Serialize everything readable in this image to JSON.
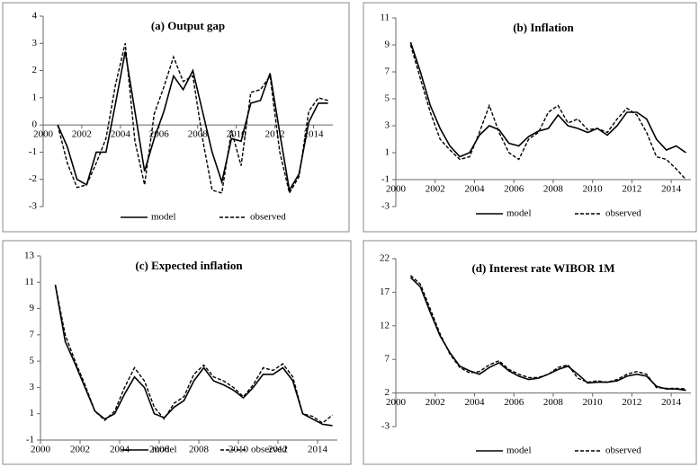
{
  "chart_data": [
    {
      "type": "line",
      "title": "(a) Output gap",
      "xlim": [
        2000,
        2015
      ],
      "xticks": [
        2000,
        2002,
        2004,
        2006,
        2008,
        2010,
        2012,
        2014
      ],
      "ylim": [
        -3,
        4
      ],
      "yticks": [
        -3,
        -2,
        -1,
        0,
        1,
        2,
        3,
        4
      ],
      "xaxis_at": 0,
      "x": [
        2000.75,
        2001.25,
        2001.75,
        2002.25,
        2002.75,
        2003.25,
        2003.75,
        2004.25,
        2004.75,
        2005.25,
        2005.75,
        2006.25,
        2006.75,
        2007.25,
        2007.75,
        2008.25,
        2008.75,
        2009.25,
        2009.75,
        2010.25,
        2010.75,
        2011.25,
        2011.75,
        2012.25,
        2012.75,
        2013.25,
        2013.75,
        2014.25,
        2014.75
      ],
      "series": [
        {
          "name": "model",
          "color": "#000000",
          "dashed": false,
          "values": [
            0,
            -0.8,
            -2.0,
            -2.2,
            -1.0,
            -1.0,
            0.8,
            2.7,
            0.5,
            -1.7,
            -0.5,
            0.5,
            1.8,
            1.3,
            2.0,
            0.5,
            -1.0,
            -2.1,
            -0.5,
            -0.6,
            0.8,
            0.9,
            1.9,
            -0.3,
            -2.4,
            -1.8,
            0.1,
            0.8,
            0.8
          ]
        },
        {
          "name": "observed",
          "color": "#000000",
          "dashed": true,
          "values": [
            0,
            -1.4,
            -2.3,
            -2.2,
            -1.4,
            -0.5,
            1.5,
            3.0,
            -0.6,
            -2.2,
            0.4,
            1.4,
            2.5,
            1.6,
            1.8,
            -0.5,
            -2.4,
            -2.5,
            -0.2,
            -1.5,
            1.2,
            1.3,
            1.8,
            -1.0,
            -2.5,
            -1.9,
            0.5,
            1.0,
            0.9
          ]
        }
      ]
    },
    {
      "type": "line",
      "title": "(b) Inflation",
      "xlim": [
        2000,
        2015
      ],
      "xticks": [
        2000,
        2002,
        2004,
        2006,
        2008,
        2010,
        2012,
        2014
      ],
      "ylim": [
        -3,
        11
      ],
      "yticks": [
        -3,
        -1,
        1,
        3,
        5,
        7,
        9,
        11
      ],
      "xaxis_at": -1,
      "x": [
        2000.75,
        2001.25,
        2001.75,
        2002.25,
        2002.75,
        2003.25,
        2003.75,
        2004.25,
        2004.75,
        2005.25,
        2005.75,
        2006.25,
        2006.75,
        2007.25,
        2007.75,
        2008.25,
        2008.75,
        2009.25,
        2009.75,
        2010.25,
        2010.75,
        2011.25,
        2011.75,
        2012.25,
        2012.75,
        2013.25,
        2013.75,
        2014.25,
        2014.75
      ],
      "series": [
        {
          "name": "model",
          "color": "#000000",
          "dashed": false,
          "values": [
            9.2,
            7.0,
            4.5,
            2.8,
            1.5,
            0.7,
            1.0,
            2.3,
            3.0,
            2.7,
            1.7,
            1.5,
            2.2,
            2.6,
            2.8,
            3.8,
            3.0,
            2.8,
            2.5,
            2.8,
            2.3,
            3.0,
            4.0,
            4.0,
            3.5,
            2.0,
            1.2,
            1.5,
            1.0
          ]
        },
        {
          "name": "observed",
          "color": "#000000",
          "dashed": true,
          "values": [
            9.0,
            6.5,
            4.0,
            2.0,
            1.2,
            0.5,
            0.7,
            2.5,
            4.5,
            2.5,
            1.0,
            0.5,
            2.0,
            2.5,
            4.0,
            4.5,
            3.2,
            3.5,
            2.7,
            2.8,
            2.5,
            3.5,
            4.3,
            3.8,
            2.5,
            0.7,
            0.5,
            -0.2,
            -1.0
          ]
        }
      ]
    },
    {
      "type": "line",
      "title": "(c) Expected inflation",
      "xlim": [
        2000,
        2015
      ],
      "xticks": [
        2000,
        2002,
        2004,
        2006,
        2008,
        2010,
        2012,
        2014
      ],
      "ylim": [
        -1,
        13
      ],
      "yticks": [
        -1,
        1,
        3,
        5,
        7,
        9,
        11,
        13
      ],
      "xaxis_at": -1,
      "x": [
        2000.75,
        2001.25,
        2001.75,
        2002.25,
        2002.75,
        2003.25,
        2003.75,
        2004.25,
        2004.75,
        2005.25,
        2005.75,
        2006.25,
        2006.75,
        2007.25,
        2007.75,
        2008.25,
        2008.75,
        2009.25,
        2009.75,
        2010.25,
        2010.75,
        2011.25,
        2011.75,
        2012.25,
        2012.75,
        2013.25,
        2013.75,
        2014.25,
        2014.75
      ],
      "series": [
        {
          "name": "model",
          "color": "#000000",
          "dashed": false,
          "values": [
            10.8,
            6.5,
            4.8,
            3.0,
            1.2,
            0.6,
            1.0,
            2.5,
            3.8,
            3.0,
            1.0,
            0.7,
            1.5,
            2.0,
            3.5,
            4.5,
            3.5,
            3.2,
            2.8,
            2.2,
            3.0,
            4.0,
            4.0,
            4.5,
            3.5,
            1.0,
            0.6,
            0.2,
            0.1
          ]
        },
        {
          "name": "observed",
          "color": "#000000",
          "dashed": true,
          "values": [
            10.8,
            7.0,
            5.0,
            3.2,
            1.2,
            0.5,
            1.2,
            3.0,
            4.5,
            3.5,
            1.5,
            0.6,
            1.8,
            2.3,
            4.0,
            4.7,
            3.8,
            3.5,
            3.0,
            2.3,
            3.2,
            4.5,
            4.3,
            4.8,
            3.8,
            1.0,
            0.8,
            0.3,
            0.9
          ]
        }
      ]
    },
    {
      "type": "line",
      "title": "(d) Interest rate WIBOR 1M",
      "xlim": [
        2000,
        2015
      ],
      "xticks": [
        2000,
        2002,
        2004,
        2006,
        2008,
        2010,
        2012,
        2014
      ],
      "ylim": [
        -3,
        22
      ],
      "yticks": [
        -3,
        2,
        7,
        12,
        17,
        22
      ],
      "xaxis_at": 2,
      "x": [
        2000.75,
        2001.25,
        2001.75,
        2002.25,
        2002.75,
        2003.25,
        2003.75,
        2004.25,
        2004.75,
        2005.25,
        2005.75,
        2006.25,
        2006.75,
        2007.25,
        2007.75,
        2008.25,
        2008.75,
        2009.25,
        2009.75,
        2010.25,
        2010.75,
        2011.25,
        2011.75,
        2012.25,
        2012.75,
        2013.25,
        2013.75,
        2014.25,
        2014.75
      ],
      "series": [
        {
          "name": "model",
          "color": "#000000",
          "dashed": false,
          "values": [
            19.2,
            17.8,
            14.0,
            10.5,
            8.0,
            6.0,
            5.3,
            4.8,
            5.8,
            6.5,
            5.3,
            4.5,
            4.0,
            4.2,
            4.8,
            5.5,
            6.0,
            4.8,
            3.5,
            3.6,
            3.6,
            3.8,
            4.5,
            4.8,
            4.5,
            3.0,
            2.6,
            2.6,
            2.4
          ]
        },
        {
          "name": "observed",
          "color": "#000000",
          "dashed": true,
          "values": [
            19.5,
            18.2,
            14.5,
            10.8,
            7.8,
            5.8,
            5.0,
            5.2,
            6.2,
            6.8,
            5.5,
            4.8,
            4.3,
            4.3,
            4.8,
            5.8,
            6.2,
            4.2,
            3.6,
            3.8,
            3.6,
            4.0,
            4.8,
            5.2,
            4.8,
            2.8,
            2.7,
            2.7,
            2.6
          ]
        }
      ]
    }
  ]
}
